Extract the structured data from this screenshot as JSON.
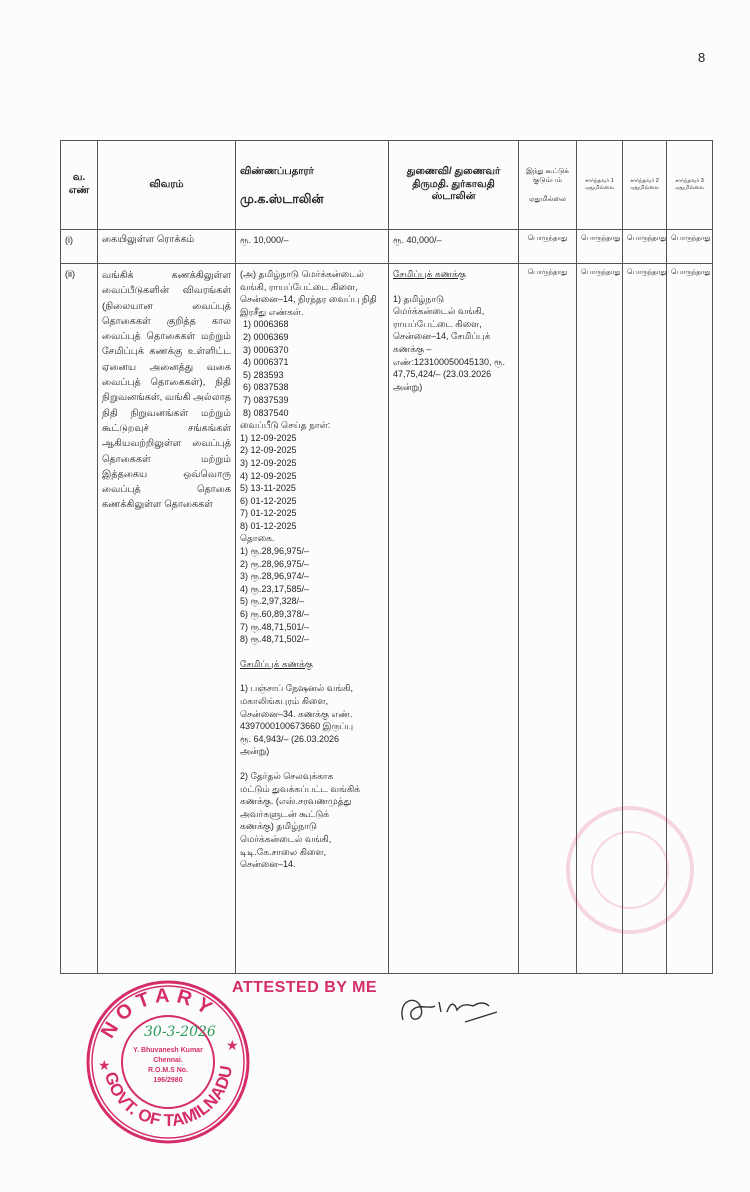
{
  "page_number": "8",
  "table": {
    "headers": {
      "sno": "வ. எண்",
      "details": "விவரம்",
      "applicant_label": "விண்ணப்பதாரர்",
      "applicant_name": "மு.க.ஸ்டாலின்",
      "spouse": "துணைவி/ துணைவர் திருமதி. துர்காவதி ஸ்டாலின்",
      "huf": "இந்து கூட்டுக் குடும்பம்",
      "huf_value": "ஏதுமில்லை",
      "dep1": "சார்ந்தவர் 1 ஏதுமில்லை",
      "dep2": "சார்ந்தவர் 2 ஏதுமில்லை",
      "dep3": "சார்ந்தவர் 3 ஏதுமில்லை"
    },
    "rows": [
      {
        "sno": "(i)",
        "details": "கையிலுள்ள ரொக்கம்",
        "applicant": "ரூ. 10,000/–",
        "spouse": "ரூ. 40,000/–",
        "huf": "பொருந்தாது",
        "dep1": "பொருந்தாது",
        "dep2": "பொருந்தாது",
        "dep3": "பொருந்தாது"
      },
      {
        "sno": "(ii)",
        "details": "வங்கிக் கணக்கிலுள்ள வைப்பீடுகளின் விவரங்கள் (நிலையான வைப்புத் தொகைகள் குறித்த கால வைப்புத் தொகைகள் மற்றும் சேமிப்புக் கணக்கு உள்ளிட்ட ஏனைய அனைத்து வகை வைப்புத் தொகைகள்), நிதி நிறுவனங்கள், வங்கி அல்லாத நிதி நிறுவனங்கள் மற்றும் கூட்டுறவுச் சங்கங்கள் ஆகியவற்றிலுள்ள வைப்புத் தொகைகள் மற்றும் இத்தகைய ஒவ்வொரு வைப்புத் தொகை கணக்கிலுள்ள தொகைகள்",
        "applicant": {
          "fd_intro": "(அ) தமிழ்நாடு மெர்க்கன்டைல் வங்கி, ராயப்பேட்டை கிளை, சென்னை–14, நிரந்தர வைப்பு நிதி இரசீது எண்கள்.",
          "receipts": [
            "1) 0006368",
            "2) 0006369",
            "3) 0006370",
            "4) 0006371",
            "5) 283593",
            "6) 0837538",
            "7) 0837539",
            "8) 0837540"
          ],
          "dates_label": "வைப்பீடு செய்த நாள்:",
          "dates": [
            "1) 12-09-2025",
            "2) 12-09-2025",
            "3) 12-09-2025",
            "4) 12-09-2025",
            "5) 13-11-2025",
            "6) 01-12-2025",
            "7) 01-12-2025",
            "8) 01-12-2025"
          ],
          "amounts_label": "தொகை.",
          "amounts": [
            "1) ரூ.28,96,975/–",
            "2) ரூ.28,96,975/–",
            "3) ரூ.28,96,974/–",
            "4) ரூ.23,17,585/–",
            "5) ரூ.2,97,328/–",
            "6) ரூ.60,89,378/–",
            "7) ரூ.48,71,501/–",
            "8) ரூ.48,71,502/–"
          ],
          "savings_heading": "சேமிப்புக் கணக்கு",
          "savings1": "1) பஞ்சாப் நேஷனல் வங்கி, மகாலிங்கபுரம் கிளை, சென்னை–34. கணக்கு எண். 4397000100673660 இருப்பு ரூ. 64,943/– (26.03.2026 அன்று)",
          "savings2": "2) தேர்தல் செலவுக்காக மட்டும் துவக்கப்பட்ட வங்கிக் கணக்கு. (எஸ்.சரவணமுத்து அவர்களுடன் கூட்டுக் கணக்கு) தமிழ்நாடு மெர்க்கன்டைல் வங்கி, டிடி.கே.சாலை கிளை, சென்னை–14."
        },
        "spouse": {
          "heading": "சேமிப்புக் கணக்கு",
          "text": "1) தமிழ்நாடு மெர்க்கன்டைல் வங்கி, ராயப்பேட்டை கிளை, சென்னை–14, சேமிப்புக் கணக்கு – எண்:123100050045130, ரூ. 47,75,424/– (23.03.2026 அன்று)"
        },
        "huf": "பொருந்தாது",
        "dep1": "பொருந்தாது",
        "dep2": "பொருந்தாது",
        "dep3": "பொருந்தாது"
      }
    ]
  },
  "attestation": {
    "text": "ATTESTED BY ME",
    "seal_text": [
      "NOTARY",
      "GOVT. OF TAMILNADU",
      "Y. Bhuvanesh Kumar",
      "Chennai.",
      "R.O.M.S No.",
      "196/2980"
    ],
    "seal_date": "30-3-2026",
    "seal_color": "#d42d6a"
  }
}
